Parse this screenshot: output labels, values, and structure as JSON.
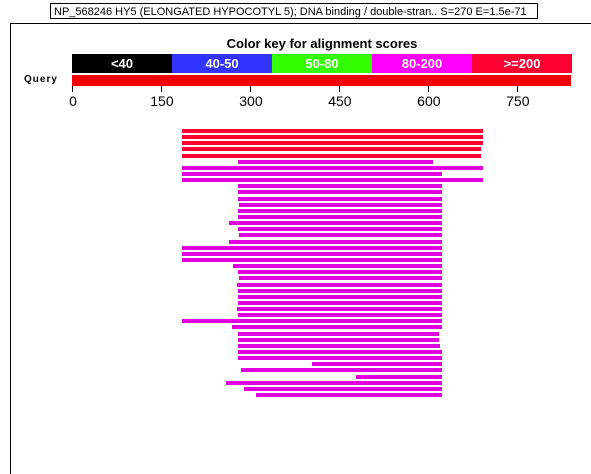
{
  "tooltip": "NP_568246 HY5 (ELONGATED HYPOCOTYL 5); DNA binding / double-stran.. S=270 E=1.5e-71",
  "key_title": "Color key for alignment scores",
  "key": [
    {
      "label": "<40",
      "color": "#000000"
    },
    {
      "label": "40-50",
      "color": "#3333ff"
    },
    {
      "label": "50-80",
      "color": "#33ff00"
    },
    {
      "label": "80-200",
      "color": "#ff00ff"
    },
    {
      "label": ">=200",
      "color": "#ff0033"
    }
  ],
  "query_label": "Query",
  "axis_ticks": [
    "0",
    "150",
    "300",
    "450",
    "600",
    "750"
  ],
  "colors": {
    "high": "#ff0033",
    "mid": "#e000e0",
    "query": "#f00000"
  },
  "hits": [
    {
      "start": 185,
      "end": 695,
      "score": "high"
    },
    {
      "start": 185,
      "end": 695,
      "score": "high"
    },
    {
      "start": 185,
      "end": 695,
      "score": "high"
    },
    {
      "start": 185,
      "end": 692,
      "score": "high"
    },
    {
      "start": 185,
      "end": 692,
      "score": "high"
    },
    {
      "start": 280,
      "end": 610,
      "score": "mid"
    },
    {
      "start": 185,
      "end": 695,
      "score": "mid"
    },
    {
      "start": 185,
      "end": 625,
      "score": "mid"
    },
    {
      "start": 185,
      "end": 695,
      "score": "mid"
    },
    {
      "start": 280,
      "end": 625,
      "score": "mid"
    },
    {
      "start": 280,
      "end": 625,
      "score": "mid"
    },
    {
      "start": 280,
      "end": 625,
      "score": "mid"
    },
    {
      "start": 282,
      "end": 625,
      "score": "mid"
    },
    {
      "start": 280,
      "end": 625,
      "score": "mid"
    },
    {
      "start": 280,
      "end": 625,
      "score": "mid"
    },
    {
      "start": 265,
      "end": 625,
      "score": "mid"
    },
    {
      "start": 280,
      "end": 625,
      "score": "mid"
    },
    {
      "start": 282,
      "end": 625,
      "score": "mid"
    },
    {
      "start": 265,
      "end": 625,
      "score": "mid"
    },
    {
      "start": 185,
      "end": 625,
      "score": "mid"
    },
    {
      "start": 185,
      "end": 625,
      "score": "mid"
    },
    {
      "start": 185,
      "end": 625,
      "score": "mid"
    },
    {
      "start": 272,
      "end": 625,
      "score": "mid"
    },
    {
      "start": 280,
      "end": 625,
      "score": "mid"
    },
    {
      "start": 282,
      "end": 625,
      "score": "mid"
    },
    {
      "start": 278,
      "end": 625,
      "score": "mid"
    },
    {
      "start": 280,
      "end": 625,
      "score": "mid"
    },
    {
      "start": 280,
      "end": 625,
      "score": "mid"
    },
    {
      "start": 280,
      "end": 625,
      "score": "mid"
    },
    {
      "start": 278,
      "end": 625,
      "score": "mid"
    },
    {
      "start": 280,
      "end": 625,
      "score": "mid"
    },
    {
      "start": 185,
      "end": 625,
      "score": "mid"
    },
    {
      "start": 270,
      "end": 625,
      "score": "mid"
    },
    {
      "start": 280,
      "end": 620,
      "score": "mid"
    },
    {
      "start": 280,
      "end": 620,
      "score": "mid"
    },
    {
      "start": 280,
      "end": 622,
      "score": "mid"
    },
    {
      "start": 280,
      "end": 625,
      "score": "mid"
    },
    {
      "start": 280,
      "end": 625,
      "score": "mid"
    },
    {
      "start": 405,
      "end": 625,
      "score": "mid"
    },
    {
      "start": 285,
      "end": 625,
      "score": "mid"
    },
    {
      "start": 480,
      "end": 625,
      "score": "mid"
    },
    {
      "start": 260,
      "end": 625,
      "score": "mid"
    },
    {
      "start": 290,
      "end": 625,
      "score": "mid"
    },
    {
      "start": 310,
      "end": 625,
      "score": "mid"
    }
  ]
}
